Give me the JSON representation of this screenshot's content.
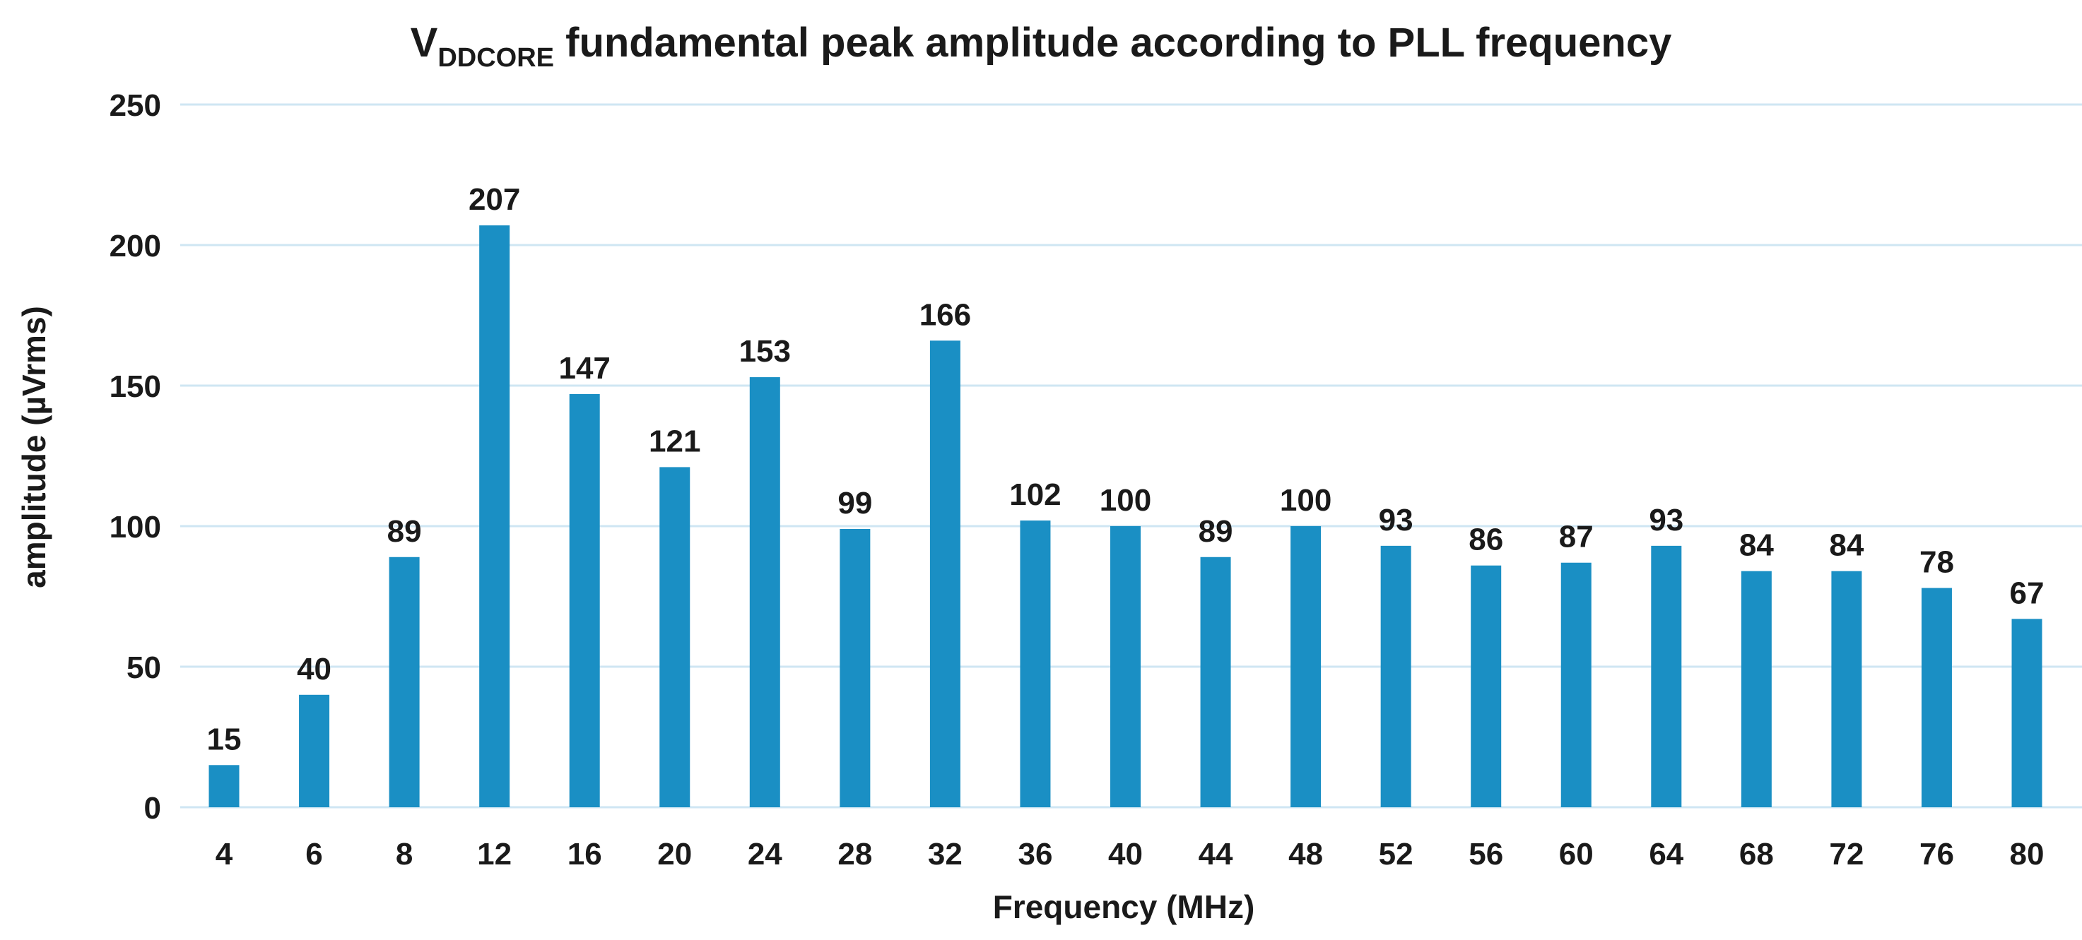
{
  "chart_data": {
    "type": "bar",
    "title": {
      "prefix": "V",
      "subscript": "DDCORE",
      "suffix": " fundamental peak amplitude according to PLL frequency"
    },
    "xlabel": "Frequency (MHz)",
    "ylabel": "amplitude (µVrms)",
    "categories": [
      "4",
      "6",
      "8",
      "12",
      "16",
      "20",
      "24",
      "28",
      "32",
      "36",
      "40",
      "44",
      "48",
      "52",
      "56",
      "60",
      "64",
      "68",
      "72",
      "76",
      "80"
    ],
    "values": [
      15,
      40,
      89,
      207,
      147,
      121,
      153,
      99,
      166,
      102,
      100,
      89,
      100,
      93,
      86,
      87,
      93,
      84,
      84,
      78,
      67
    ],
    "ylim": [
      0,
      250
    ],
    "yticks": [
      0,
      50,
      100,
      150,
      200,
      250
    ],
    "grid": true,
    "data_labels": true,
    "bar_color": "#1a8fc4",
    "grid_color": "#cfe6f3"
  }
}
